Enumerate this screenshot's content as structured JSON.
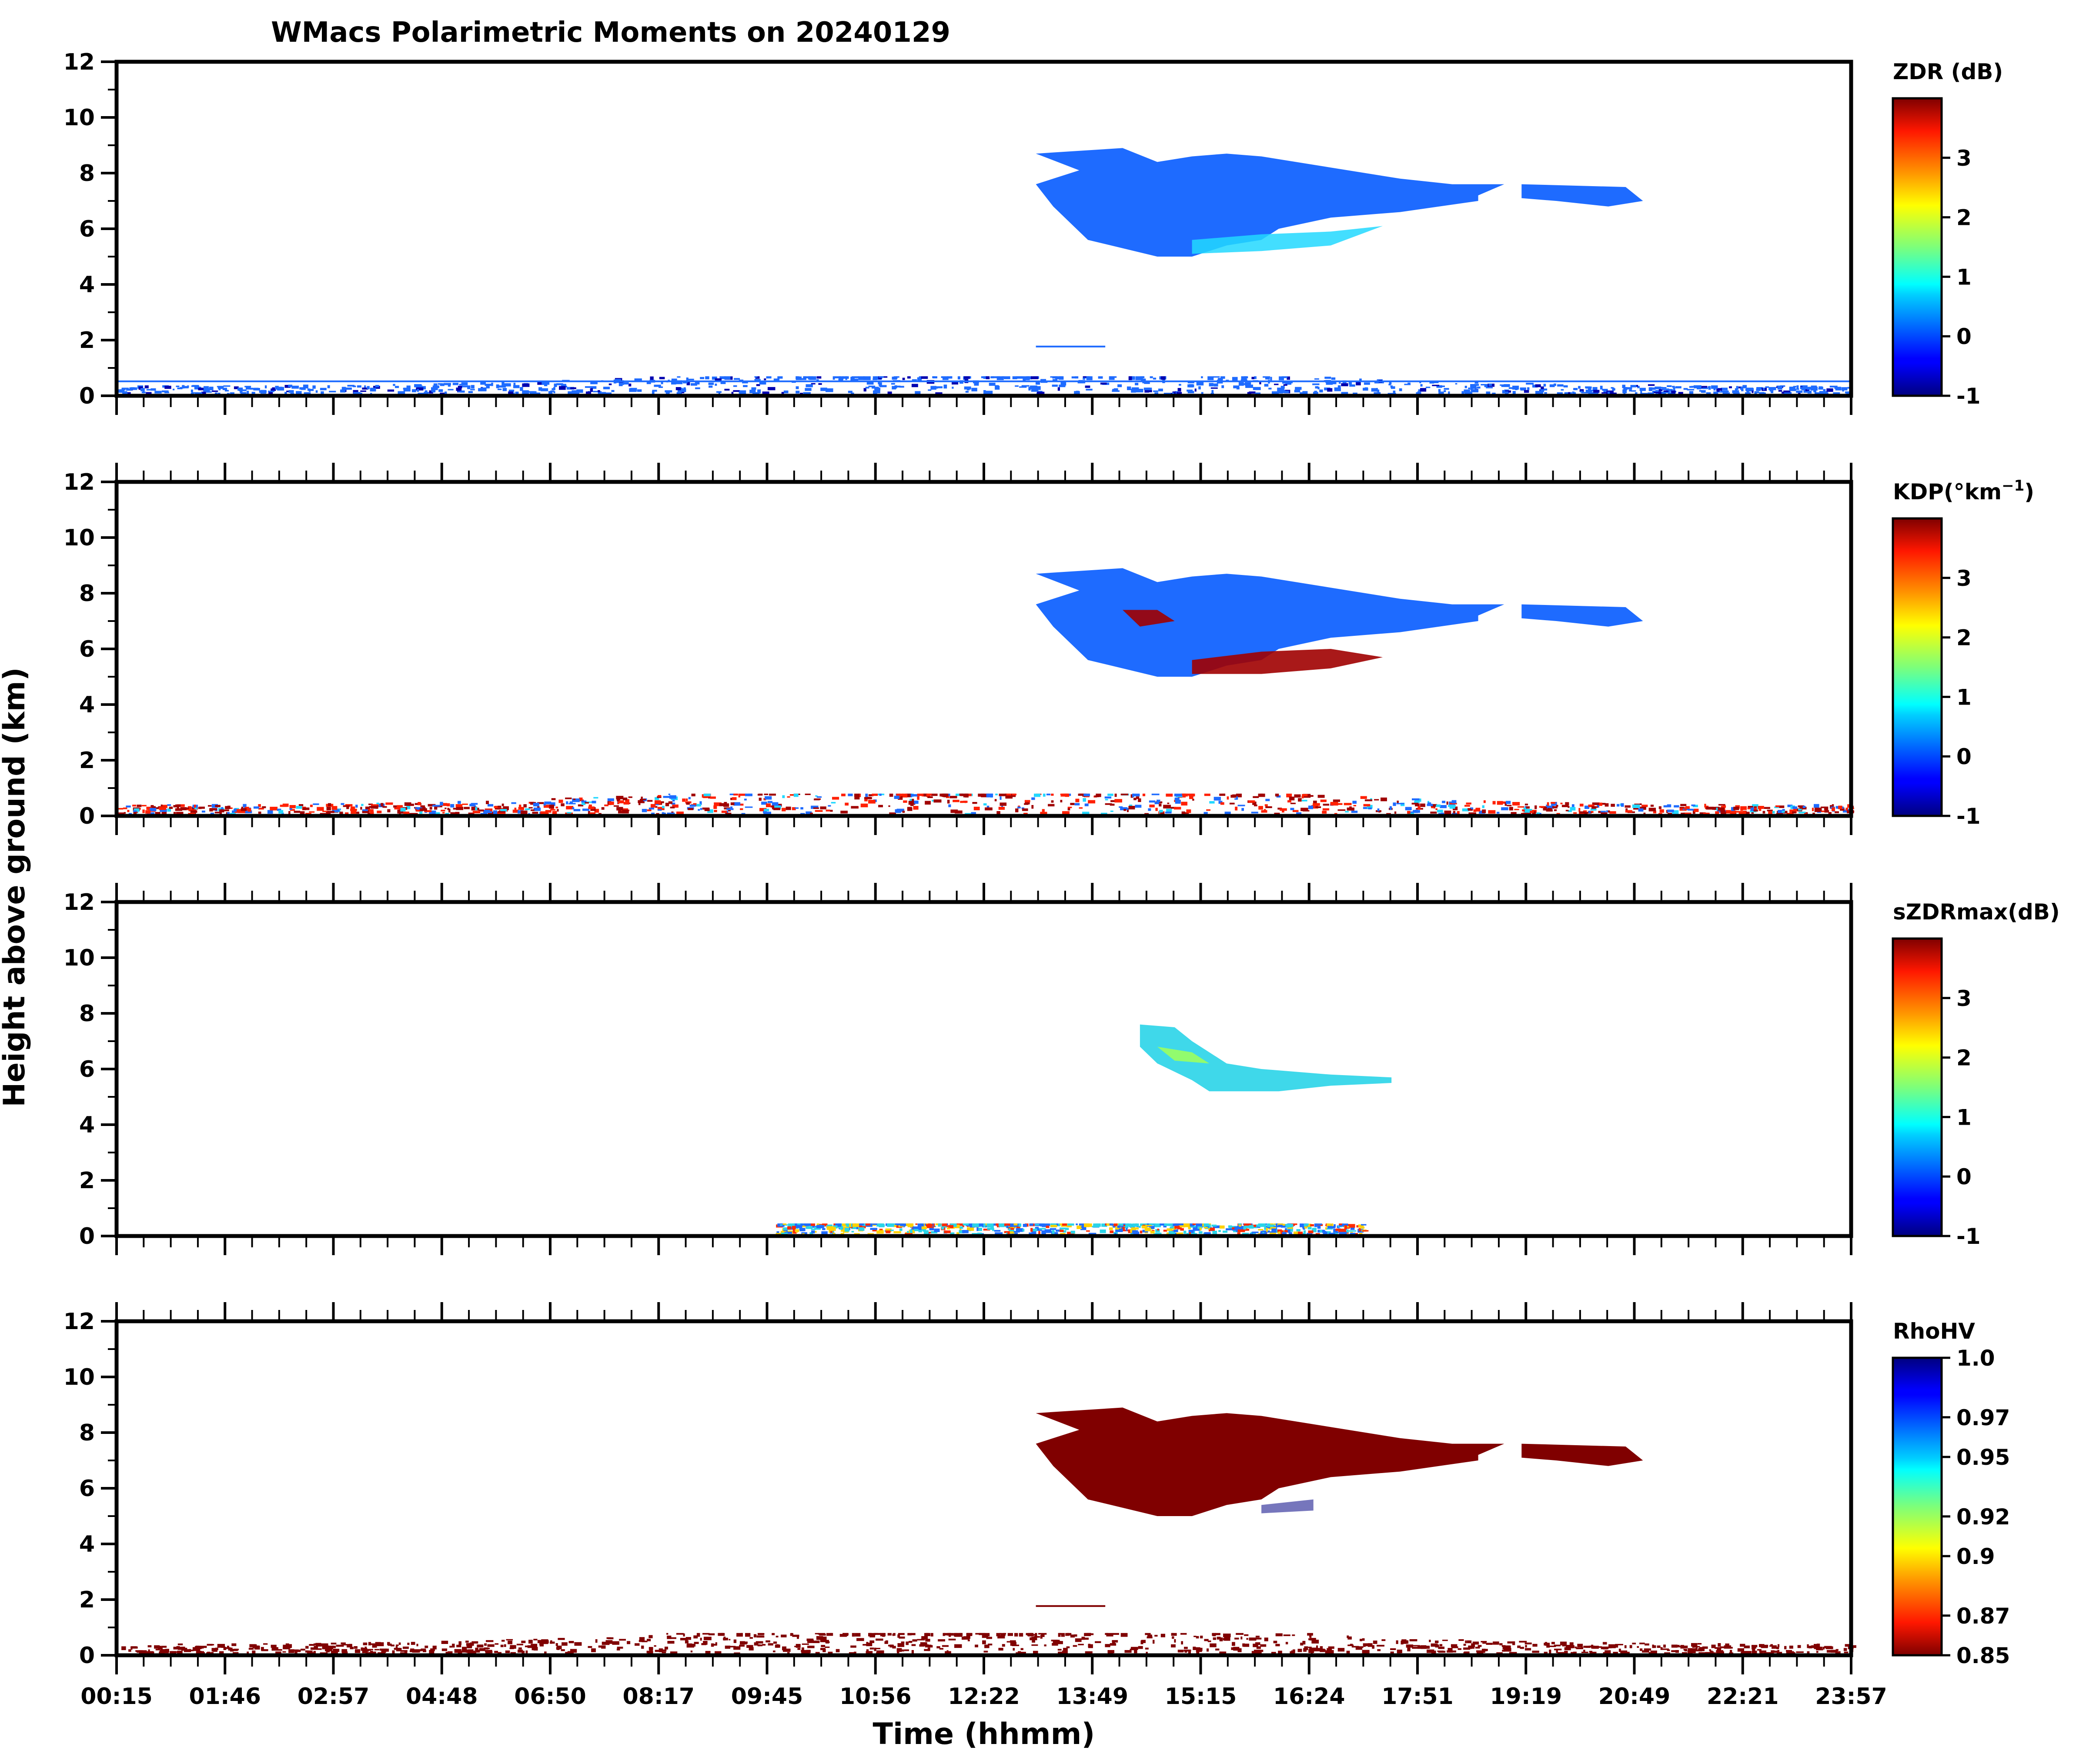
{
  "chart_data": {
    "type": "heatmap",
    "title": "WMacs Polarimetric Moments on 20240129",
    "xlabel": "Time (hhmm)",
    "ylabel": "Height above ground (km)",
    "x_tick_labels": [
      "00:15",
      "01:46",
      "02:57",
      "04:48",
      "06:50",
      "08:17",
      "09:45",
      "10:56",
      "12:22",
      "13:49",
      "15:15",
      "16:24",
      "17:51",
      "19:19",
      "20:49",
      "22:21",
      "23:57"
    ],
    "ylim": [
      0,
      12
    ],
    "yticks": [
      0,
      2,
      4,
      6,
      8,
      10,
      12
    ],
    "grid": false,
    "panels": [
      {
        "name": "ZDR",
        "colorbar_title": "ZDR (dB)",
        "colormap": "jet",
        "clim": [
          -1,
          4
        ],
        "colorbar_ticks": [
          "-1",
          "0",
          "1",
          "2",
          "3"
        ]
      },
      {
        "name": "KDP",
        "colorbar_title": "KDP(°km",
        "colorbar_title_sup": "−1",
        "colorbar_title_end": ")",
        "colormap": "jet",
        "clim": [
          -1,
          4
        ],
        "colorbar_ticks": [
          "-1",
          "0",
          "1",
          "2",
          "3"
        ]
      },
      {
        "name": "sZDRmax",
        "colorbar_title": "sZDRmax(dB)",
        "colormap": "jet",
        "clim": [
          -1,
          4
        ],
        "colorbar_ticks": [
          "-1",
          "0",
          "1",
          "2",
          "3"
        ]
      },
      {
        "name": "RhoHV",
        "colorbar_title": "RhoHV",
        "colormap": "jet_r",
        "clim": [
          0.85,
          1.0
        ],
        "colorbar_ticks": [
          "0.85",
          "0.87",
          "0.9",
          "0.92",
          "0.95",
          "0.97",
          "1.0"
        ]
      }
    ]
  },
  "colors": {
    "zdr_cloud": "#1e6bff",
    "zdr_edge": "#22d8ff",
    "kdp_cloud": "#1e6bff",
    "kdp_hot": "#a00000",
    "szdr_cloud": "#2ad4e8",
    "rhohv_cloud": "#800000",
    "rhohv_core": "#1a1a90"
  }
}
